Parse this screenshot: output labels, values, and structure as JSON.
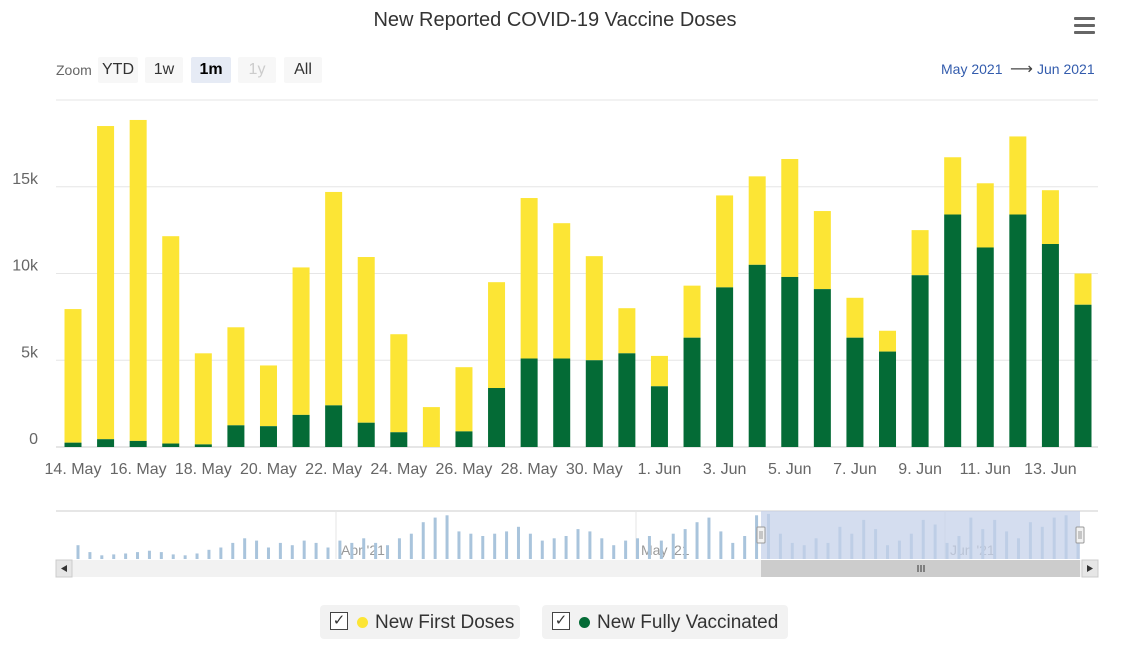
{
  "title": "New Reported COVID-19 Vaccine Doses",
  "menu": {
    "icon": "hamburger-menu-icon"
  },
  "zoom": {
    "label": "Zoom",
    "buttons": [
      "YTD",
      "1w",
      "1m",
      "1y",
      "All"
    ],
    "active": "1m",
    "disabled": [
      "1y"
    ]
  },
  "range": {
    "from": "May 2021",
    "arrow": "⟶",
    "to": "Jun 2021"
  },
  "colors": {
    "first": "#fce535",
    "full": "#046b36",
    "grid": "#e6e6e6",
    "navigator_mask": "#c6d1ea",
    "navigator_bar": "#a9c4dc"
  },
  "chart_data": {
    "type": "bar",
    "stacked": true,
    "title": "New Reported COVID-19 Vaccine Doses",
    "categories": [
      "14. May",
      "15. May",
      "16. May",
      "17. May",
      "18. May",
      "19. May",
      "20. May",
      "21. May",
      "22. May",
      "23. May",
      "24. May",
      "25. May",
      "26. May",
      "27. May",
      "28. May",
      "29. May",
      "30. May",
      "31. May",
      "1. Jun",
      "2. Jun",
      "3. Jun",
      "4. Jun",
      "5. Jun",
      "6. Jun",
      "7. Jun",
      "8. Jun",
      "9. Jun",
      "10. Jun",
      "11. Jun",
      "12. Jun",
      "13. Jun",
      "14. Jun"
    ],
    "x_tick_labels": [
      "14. May",
      "16. May",
      "18. May",
      "20. May",
      "22. May",
      "24. May",
      "26. May",
      "28. May",
      "30. May",
      "1. Jun",
      "3. Jun",
      "5. Jun",
      "7. Jun",
      "9. Jun",
      "11. Jun",
      "13. Jun"
    ],
    "series": [
      {
        "name": "New Fully Vaccinated",
        "values": [
          250,
          450,
          350,
          200,
          150,
          1250,
          1200,
          1850,
          2400,
          1400,
          850,
          0,
          900,
          3400,
          5100,
          5100,
          5000,
          5400,
          3500,
          6300,
          9200,
          10500,
          9800,
          9100,
          6300,
          5500,
          9900,
          13400,
          11500,
          13400,
          11700,
          8200
        ]
      },
      {
        "name": "New First Doses",
        "values": [
          7700,
          18050,
          18500,
          11950,
          5250,
          5650,
          3500,
          8500,
          12300,
          9550,
          5650,
          2300,
          3700,
          6100,
          9250,
          7800,
          6000,
          2600,
          1750,
          3000,
          5300,
          5100,
          6800,
          4500,
          2300,
          1200,
          2600,
          3300,
          3700,
          4500,
          3100,
          1800
        ]
      }
    ],
    "y_ticks": [
      0,
      5000,
      10000,
      15000
    ],
    "y_tick_labels": [
      "0",
      "5k",
      "10k",
      "15k"
    ],
    "ylim": [
      0,
      20000
    ],
    "navigator": {
      "labels": [
        "Apr '21",
        "May '21",
        "Jun '21"
      ],
      "values": [
        0.3,
        0.15,
        0.08,
        0.1,
        0.12,
        0.15,
        0.18,
        0.15,
        0.1,
        0.08,
        0.12,
        0.2,
        0.25,
        0.35,
        0.45,
        0.4,
        0.25,
        0.35,
        0.3,
        0.4,
        0.35,
        0.25,
        0.4,
        0.35,
        0.45,
        0.35,
        0.3,
        0.45,
        0.55,
        0.8,
        0.9,
        0.95,
        0.6,
        0.55,
        0.5,
        0.55,
        0.6,
        0.7,
        0.55,
        0.4,
        0.45,
        0.5,
        0.65,
        0.6,
        0.45,
        0.3,
        0.4,
        0.45,
        0.5,
        0.4,
        0.55,
        0.65,
        0.8,
        0.9,
        0.6,
        0.35,
        0.5,
        0.95,
        0.98,
        0.55,
        0.35,
        0.3,
        0.45,
        0.35,
        0.7,
        0.55,
        0.85,
        0.65,
        0.3,
        0.4,
        0.55,
        0.85,
        0.75,
        0.35,
        0.5,
        0.9,
        0.65,
        0.85,
        0.6,
        0.45,
        0.8,
        0.7,
        0.9,
        0.95,
        0.55
      ]
    }
  },
  "legend": [
    {
      "label": "New First Doses",
      "color": "#fce535",
      "checked": true
    },
    {
      "label": "New Fully Vaccinated",
      "color": "#046b36",
      "checked": true
    }
  ]
}
